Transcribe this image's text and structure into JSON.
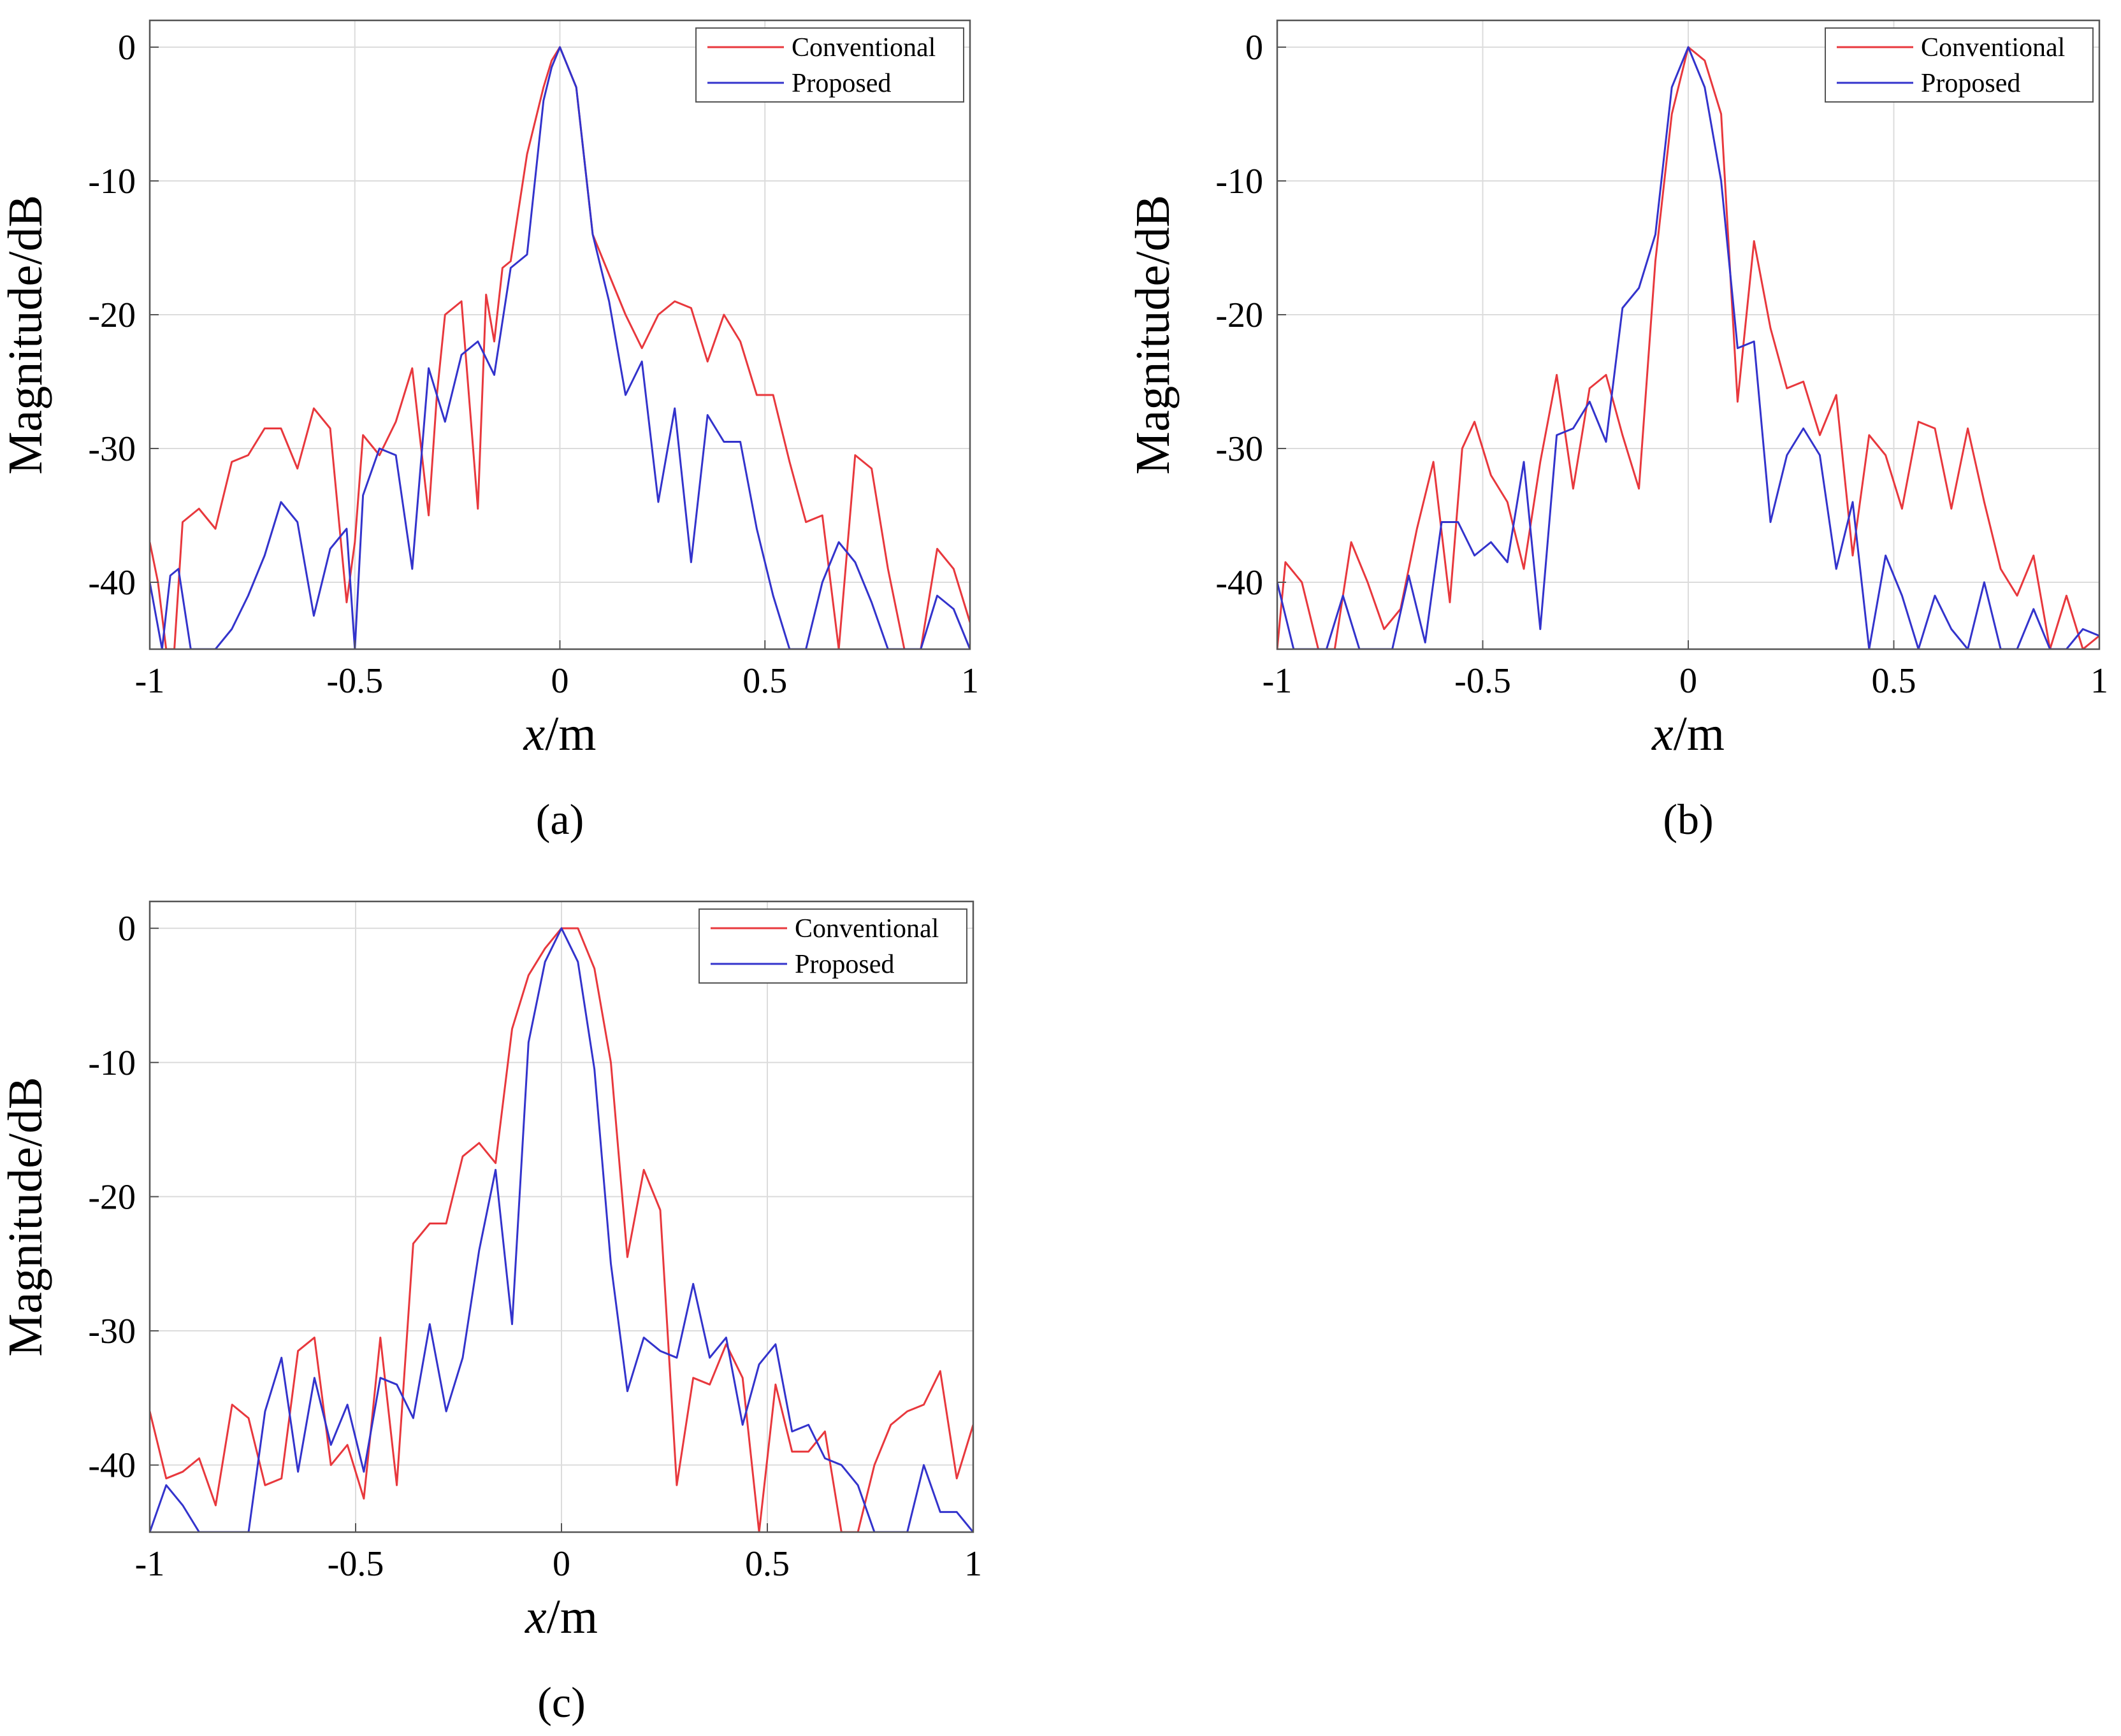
{
  "figure": {
    "colors": {
      "conventional": "#e8383d",
      "proposed": "#3333cc",
      "grid": "#dcdcdc",
      "axis": "#555555"
    }
  },
  "chart_data": [
    {
      "panel_label": "(a)",
      "type": "line",
      "xlabel_italic": "x",
      "xlabel_rest": "/m",
      "ylabel": "Magnitude/dB",
      "xlim": [
        -1,
        1
      ],
      "ylim": [
        -45,
        2
      ],
      "xticks": [
        -1,
        -0.5,
        0,
        0.5,
        1
      ],
      "xtick_labels": [
        "-1",
        "-0.5",
        "0",
        "0.5",
        "1"
      ],
      "yticks": [
        0,
        -10,
        -20,
        -30,
        -40
      ],
      "ytick_labels": [
        "0",
        "-10",
        "-20",
        "-30",
        "-40"
      ],
      "grid": true,
      "legend_position": "top-right",
      "series": [
        {
          "name": "Conventional",
          "color": "#e8383d",
          "x": [
            -1,
            -0.98,
            -0.96,
            -0.94,
            -0.92,
            -0.88,
            -0.84,
            -0.8,
            -0.76,
            -0.72,
            -0.68,
            -0.64,
            -0.6,
            -0.56,
            -0.52,
            -0.5,
            -0.48,
            -0.44,
            -0.4,
            -0.36,
            -0.32,
            -0.3,
            -0.28,
            -0.24,
            -0.2,
            -0.18,
            -0.16,
            -0.14,
            -0.12,
            -0.08,
            -0.04,
            -0.02,
            0,
            0.04,
            0.08,
            0.12,
            0.16,
            0.2,
            0.24,
            0.28,
            0.32,
            0.36,
            0.4,
            0.44,
            0.48,
            0.52,
            0.56,
            0.6,
            0.64,
            0.68,
            0.72,
            0.76,
            0.8,
            0.84,
            0.88,
            0.92,
            0.96,
            1
          ],
          "values": [
            -37,
            -40,
            -45,
            -45,
            -35.5,
            -34.5,
            -36,
            -31,
            -30.5,
            -28.5,
            -28.5,
            -31.5,
            -27,
            -28.5,
            -41.5,
            -37,
            -29,
            -30.5,
            -28,
            -24,
            -35,
            -26,
            -20,
            -19,
            -34.5,
            -18.5,
            -22,
            -16.5,
            -16,
            -8,
            -3,
            -1,
            0,
            -3,
            -14,
            -17,
            -20,
            -22.5,
            -20,
            -19,
            -19.5,
            -23.5,
            -20,
            -22,
            -26,
            -26,
            -31,
            -35.5,
            -35,
            -45,
            -30.5,
            -31.5,
            -39,
            -45,
            -45,
            -37.5,
            -39,
            -43
          ]
        },
        {
          "name": "Proposed",
          "color": "#3333cc",
          "x": [
            -1,
            -0.97,
            -0.95,
            -0.93,
            -0.9,
            -0.87,
            -0.84,
            -0.8,
            -0.76,
            -0.72,
            -0.68,
            -0.64,
            -0.6,
            -0.56,
            -0.52,
            -0.5,
            -0.48,
            -0.44,
            -0.4,
            -0.36,
            -0.32,
            -0.28,
            -0.24,
            -0.2,
            -0.16,
            -0.12,
            -0.08,
            -0.04,
            -0.02,
            0,
            0.04,
            0.08,
            0.12,
            0.16,
            0.2,
            0.24,
            0.28,
            0.32,
            0.36,
            0.4,
            0.44,
            0.48,
            0.52,
            0.56,
            0.6,
            0.64,
            0.68,
            0.72,
            0.76,
            0.8,
            0.84,
            0.88,
            0.92,
            0.96,
            1
          ],
          "values": [
            -40,
            -45,
            -39.5,
            -39,
            -45,
            -45,
            -45,
            -43.5,
            -41,
            -38,
            -34,
            -35.5,
            -42.5,
            -37.5,
            -36,
            -45,
            -33.5,
            -30,
            -30.5,
            -39,
            -24,
            -28,
            -23,
            -22,
            -24.5,
            -16.5,
            -15.5,
            -4,
            -1.5,
            0,
            -3,
            -14,
            -19,
            -26,
            -23.5,
            -34,
            -27,
            -38.5,
            -27.5,
            -29.5,
            -29.5,
            -36,
            -41,
            -45,
            -45,
            -40,
            -37,
            -38.5,
            -41.5,
            -45,
            -45,
            -45,
            -41,
            -42,
            -45
          ]
        }
      ]
    },
    {
      "panel_label": "(b)",
      "type": "line",
      "xlabel_italic": "x",
      "xlabel_rest": "/m",
      "ylabel": "Magnitude/dB",
      "xlim": [
        -1,
        1
      ],
      "ylim": [
        -45,
        2
      ],
      "xticks": [
        -1,
        -0.5,
        0,
        0.5,
        1
      ],
      "xtick_labels": [
        "-1",
        "-0.5",
        "0",
        "0.5",
        "1"
      ],
      "yticks": [
        0,
        -10,
        -20,
        -30,
        -40
      ],
      "ytick_labels": [
        "0",
        "-10",
        "-20",
        "-30",
        "-40"
      ],
      "grid": true,
      "legend_position": "top-right",
      "series": [
        {
          "name": "Conventional",
          "color": "#e8383d",
          "x": [
            -1,
            -0.98,
            -0.94,
            -0.9,
            -0.86,
            -0.82,
            -0.78,
            -0.74,
            -0.7,
            -0.66,
            -0.62,
            -0.58,
            -0.55,
            -0.52,
            -0.48,
            -0.44,
            -0.4,
            -0.36,
            -0.32,
            -0.28,
            -0.24,
            -0.2,
            -0.16,
            -0.12,
            -0.08,
            -0.04,
            0,
            0.04,
            0.08,
            0.12,
            0.16,
            0.2,
            0.24,
            0.28,
            0.32,
            0.36,
            0.4,
            0.44,
            0.48,
            0.52,
            0.56,
            0.6,
            0.64,
            0.68,
            0.72,
            0.76,
            0.8,
            0.84,
            0.88,
            0.92,
            0.96,
            1
          ],
          "values": [
            -45,
            -38.5,
            -40,
            -45,
            -45,
            -37,
            -40,
            -43.5,
            -42,
            -36,
            -31,
            -41.5,
            -30,
            -28,
            -32,
            -34,
            -39,
            -31,
            -24.5,
            -33,
            -25.5,
            -24.5,
            -29,
            -33,
            -16,
            -5,
            0,
            -1,
            -5,
            -26.5,
            -14.5,
            -21,
            -25.5,
            -25,
            -29,
            -26,
            -38,
            -29,
            -30.5,
            -34.5,
            -28,
            -28.5,
            -34.5,
            -28.5,
            -34,
            -39,
            -41,
            -38,
            -45,
            -41,
            -45,
            -44
          ]
        },
        {
          "name": "Proposed",
          "color": "#3333cc",
          "x": [
            -1,
            -0.96,
            -0.92,
            -0.88,
            -0.84,
            -0.8,
            -0.76,
            -0.72,
            -0.68,
            -0.64,
            -0.6,
            -0.56,
            -0.52,
            -0.48,
            -0.44,
            -0.4,
            -0.36,
            -0.32,
            -0.28,
            -0.24,
            -0.2,
            -0.16,
            -0.12,
            -0.08,
            -0.04,
            0,
            0.04,
            0.08,
            0.12,
            0.16,
            0.2,
            0.24,
            0.28,
            0.32,
            0.36,
            0.4,
            0.44,
            0.48,
            0.52,
            0.56,
            0.6,
            0.64,
            0.68,
            0.72,
            0.76,
            0.8,
            0.84,
            0.88,
            0.92,
            0.96,
            1
          ],
          "values": [
            -40,
            -45,
            -45,
            -45,
            -41,
            -45,
            -45,
            -45,
            -39.5,
            -44.5,
            -35.5,
            -35.5,
            -38,
            -37,
            -38.5,
            -31,
            -43.5,
            -29,
            -28.5,
            -26.5,
            -29.5,
            -19.5,
            -18,
            -14,
            -3,
            0,
            -3,
            -10,
            -22.5,
            -22,
            -35.5,
            -30.5,
            -28.5,
            -30.5,
            -39,
            -34,
            -45,
            -38,
            -41,
            -45,
            -41,
            -43.5,
            -45,
            -40,
            -45,
            -45,
            -42,
            -45,
            -45,
            -43.5,
            -44
          ]
        }
      ]
    },
    {
      "panel_label": "(c)",
      "type": "line",
      "xlabel_italic": "x",
      "xlabel_rest": "/m",
      "ylabel": "Magnitude/dB",
      "xlim": [
        -1,
        1
      ],
      "ylim": [
        -45,
        2
      ],
      "xticks": [
        -1,
        -0.5,
        0,
        0.5,
        1
      ],
      "xtick_labels": [
        "-1",
        "-0.5",
        "0",
        "0.5",
        "1"
      ],
      "yticks": [
        0,
        -10,
        -20,
        -30,
        -40
      ],
      "ytick_labels": [
        "0",
        "-10",
        "-20",
        "-30",
        "-40"
      ],
      "grid": true,
      "legend_position": "top-right",
      "series": [
        {
          "name": "Conventional",
          "color": "#e8383d",
          "x": [
            -1,
            -0.96,
            -0.92,
            -0.88,
            -0.84,
            -0.8,
            -0.76,
            -0.72,
            -0.68,
            -0.64,
            -0.6,
            -0.56,
            -0.52,
            -0.48,
            -0.44,
            -0.4,
            -0.36,
            -0.32,
            -0.28,
            -0.24,
            -0.2,
            -0.16,
            -0.12,
            -0.08,
            -0.04,
            0,
            0.04,
            0.08,
            0.12,
            0.16,
            0.2,
            0.24,
            0.28,
            0.32,
            0.36,
            0.4,
            0.44,
            0.48,
            0.52,
            0.56,
            0.6,
            0.64,
            0.68,
            0.72,
            0.76,
            0.8,
            0.84,
            0.88,
            0.92,
            0.96,
            1
          ],
          "values": [
            -36,
            -41,
            -40.5,
            -39.5,
            -43,
            -35.5,
            -36.5,
            -41.5,
            -41,
            -31.5,
            -30.5,
            -40,
            -38.5,
            -42.5,
            -30.5,
            -41.5,
            -23.5,
            -22,
            -22,
            -17,
            -16,
            -17.5,
            -7.5,
            -3.5,
            -1.5,
            0,
            0,
            -3,
            -10,
            -24.5,
            -18,
            -21,
            -41.5,
            -33.5,
            -34,
            -31,
            -33.5,
            -45,
            -34,
            -39,
            -39,
            -37.5,
            -45,
            -45,
            -40,
            -37,
            -36,
            -35.5,
            -33,
            -41,
            -37
          ]
        },
        {
          "name": "Proposed",
          "color": "#3333cc",
          "x": [
            -1,
            -0.96,
            -0.92,
            -0.88,
            -0.84,
            -0.8,
            -0.76,
            -0.72,
            -0.68,
            -0.64,
            -0.6,
            -0.56,
            -0.52,
            -0.48,
            -0.44,
            -0.4,
            -0.36,
            -0.32,
            -0.28,
            -0.24,
            -0.2,
            -0.16,
            -0.12,
            -0.08,
            -0.04,
            0,
            0.04,
            0.08,
            0.12,
            0.16,
            0.2,
            0.24,
            0.28,
            0.32,
            0.36,
            0.4,
            0.44,
            0.48,
            0.52,
            0.56,
            0.6,
            0.64,
            0.68,
            0.72,
            0.76,
            0.8,
            0.84,
            0.88,
            0.92,
            0.96,
            1
          ],
          "values": [
            -45,
            -41.5,
            -43,
            -45,
            -45,
            -45,
            -45,
            -36,
            -32,
            -40.5,
            -33.5,
            -38.5,
            -35.5,
            -40.5,
            -33.5,
            -34,
            -36.5,
            -29.5,
            -36,
            -32,
            -24,
            -18,
            -29.5,
            -8.5,
            -2.5,
            0,
            -2.5,
            -10.5,
            -25,
            -34.5,
            -30.5,
            -31.5,
            -32,
            -26.5,
            -32,
            -30.5,
            -37,
            -32.5,
            -31,
            -37.5,
            -37,
            -39.5,
            -40,
            -41.5,
            -45,
            -45,
            -45,
            -40,
            -43.5,
            -43.5,
            -45
          ]
        }
      ]
    }
  ]
}
